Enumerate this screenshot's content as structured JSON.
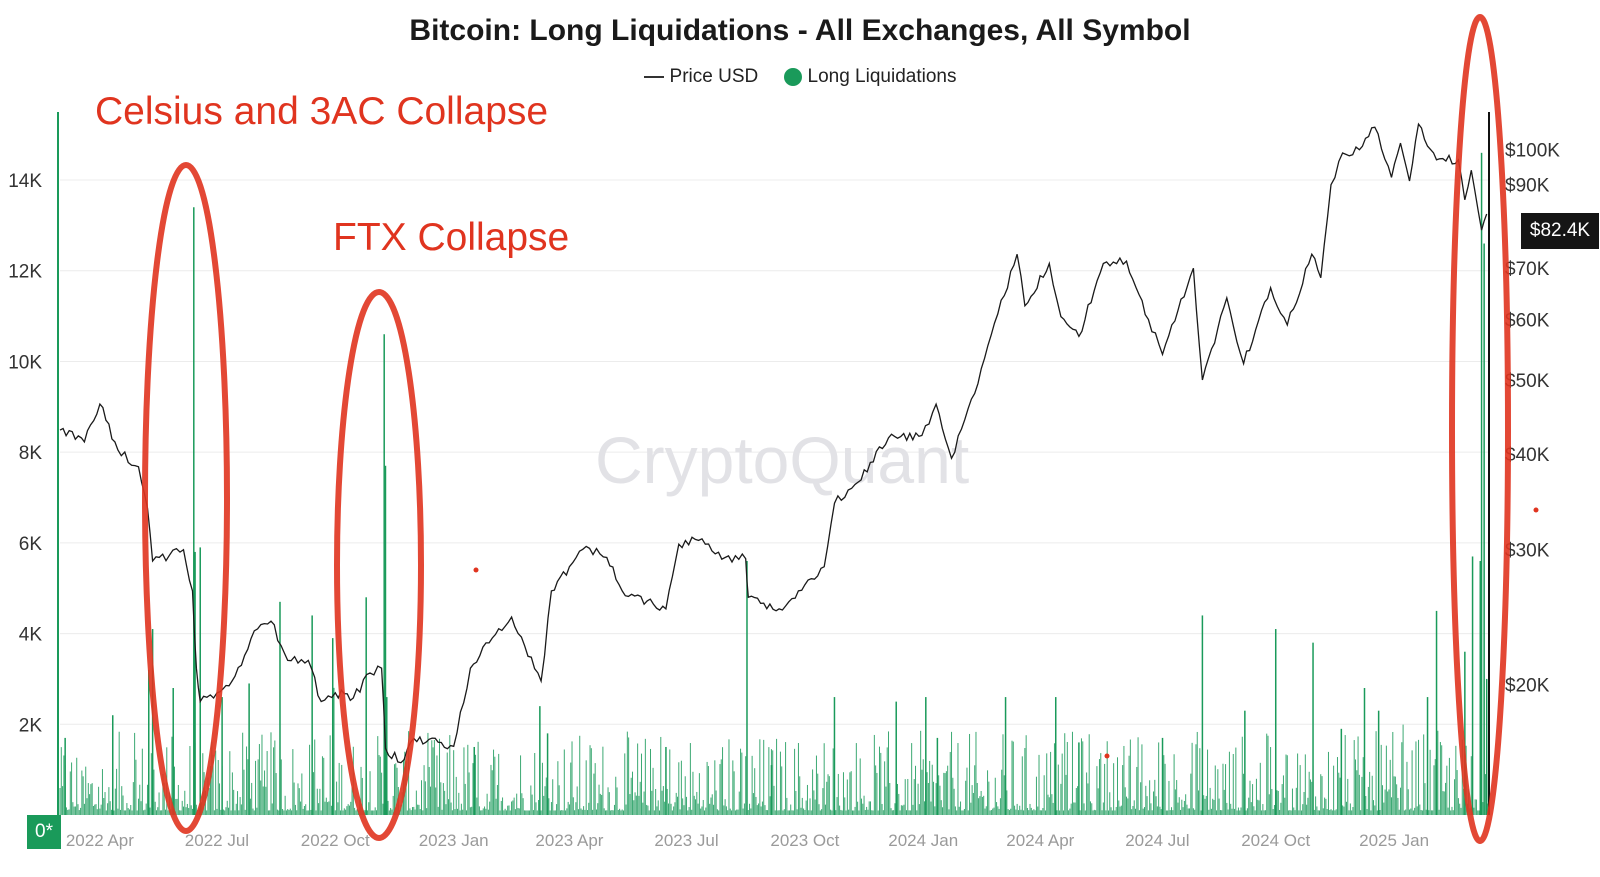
{
  "colors": {
    "liquidations": "#1a9a5a",
    "price_line": "#1a1a1a",
    "annotation": "#e0341f",
    "grid": "#ececec"
  },
  "watermark": "CryptoQuant",
  "annotations": [
    {
      "text": "Celsius and 3AC Collapse"
    },
    {
      "text": "FTX Collapse"
    }
  ],
  "zero_label": "0*",
  "current_price_label": "$82.4K",
  "chart_data": {
    "type": "bar",
    "title": "Bitcoin: Long Liquidations - All Exchanges, All Symbol",
    "legend": [
      {
        "name": "Price USD",
        "marker": "line"
      },
      {
        "name": "Long Liquidations",
        "marker": "dot"
      }
    ],
    "legend_position": "top-center",
    "grid": true,
    "x_range": [
      "2022-03-01",
      "2025-03-15"
    ],
    "x_ticks": [
      {
        "date": "2022-04-01",
        "label": "2022 Apr"
      },
      {
        "date": "2022-07-01",
        "label": "2022 Jul"
      },
      {
        "date": "2022-10-01",
        "label": "2022 Oct"
      },
      {
        "date": "2023-01-01",
        "label": "2023 Jan"
      },
      {
        "date": "2023-04-01",
        "label": "2023 Apr"
      },
      {
        "date": "2023-07-01",
        "label": "2023 Jul"
      },
      {
        "date": "2023-10-01",
        "label": "2023 Oct"
      },
      {
        "date": "2024-01-01",
        "label": "2024 Jan"
      },
      {
        "date": "2024-04-01",
        "label": "2024 Apr"
      },
      {
        "date": "2024-07-01",
        "label": "2024 Jul"
      },
      {
        "date": "2024-10-01",
        "label": "2024 Oct"
      },
      {
        "date": "2025-01-01",
        "label": "2025 Jan"
      }
    ],
    "y_left": {
      "ylim": [
        0,
        15500
      ],
      "ticks": [
        {
          "value": 2000,
          "label": "2K"
        },
        {
          "value": 4000,
          "label": "4K"
        },
        {
          "value": 6000,
          "label": "6K"
        },
        {
          "value": 8000,
          "label": "8K"
        },
        {
          "value": 10000,
          "label": "10K"
        },
        {
          "value": 12000,
          "label": "12K"
        },
        {
          "value": 14000,
          "label": "14K"
        }
      ]
    },
    "y_right": {
      "scale": "log",
      "ylim": [
        13500,
        112000
      ],
      "ticks": [
        {
          "value": 20000,
          "label": "$20K"
        },
        {
          "value": 30000,
          "label": "$30K"
        },
        {
          "value": 40000,
          "label": "$40K"
        },
        {
          "value": 50000,
          "label": "$50K"
        },
        {
          "value": 60000,
          "label": "$60K"
        },
        {
          "value": 70000,
          "label": "$70K"
        },
        {
          "value": 90000,
          "label": "$90K"
        },
        {
          "value": 100000,
          "label": "$100K"
        }
      ]
    },
    "series": [
      {
        "name": "Price USD",
        "type": "line",
        "points": [
          [
            "2022-03-01",
            43000
          ],
          [
            "2022-03-20",
            41500
          ],
          [
            "2022-04-01",
            46500
          ],
          [
            "2022-04-15",
            40500
          ],
          [
            "2022-05-01",
            38500
          ],
          [
            "2022-05-08",
            34000
          ],
          [
            "2022-05-12",
            29000
          ],
          [
            "2022-05-25",
            29500
          ],
          [
            "2022-06-05",
            30000
          ],
          [
            "2022-06-12",
            26500
          ],
          [
            "2022-06-15",
            21000
          ],
          [
            "2022-06-18",
            19000
          ],
          [
            "2022-07-01",
            19500
          ],
          [
            "2022-07-15",
            20500
          ],
          [
            "2022-07-30",
            23500
          ],
          [
            "2022-08-12",
            24200
          ],
          [
            "2022-08-25",
            21500
          ],
          [
            "2022-09-10",
            21500
          ],
          [
            "2022-09-20",
            19000
          ],
          [
            "2022-10-01",
            19500
          ],
          [
            "2022-10-15",
            19200
          ],
          [
            "2022-10-28",
            20700
          ],
          [
            "2022-11-06",
            21000
          ],
          [
            "2022-11-09",
            16500
          ],
          [
            "2022-11-21",
            15800
          ],
          [
            "2022-12-01",
            17000
          ],
          [
            "2022-12-20",
            16800
          ],
          [
            "2023-01-01",
            16600
          ],
          [
            "2023-01-14",
            21000
          ],
          [
            "2023-01-31",
            23000
          ],
          [
            "2023-02-15",
            24500
          ],
          [
            "2023-03-10",
            20200
          ],
          [
            "2023-03-18",
            26500
          ],
          [
            "2023-04-01",
            28500
          ],
          [
            "2023-04-14",
            30300
          ],
          [
            "2023-04-30",
            29300
          ],
          [
            "2023-05-12",
            26500
          ],
          [
            "2023-06-15",
            25100
          ],
          [
            "2023-06-25",
            30500
          ],
          [
            "2023-07-13",
            31000
          ],
          [
            "2023-07-31",
            29300
          ],
          [
            "2023-08-16",
            29200
          ],
          [
            "2023-08-18",
            26000
          ],
          [
            "2023-09-11",
            25100
          ],
          [
            "2023-10-01",
            27000
          ],
          [
            "2023-10-16",
            28500
          ],
          [
            "2023-10-24",
            34500
          ],
          [
            "2023-11-09",
            36500
          ],
          [
            "2023-12-05",
            42000
          ],
          [
            "2023-12-31",
            42300
          ],
          [
            "2024-01-11",
            46500
          ],
          [
            "2024-01-23",
            39500
          ],
          [
            "2024-02-10",
            48000
          ],
          [
            "2024-02-28",
            61000
          ],
          [
            "2024-03-14",
            73000
          ],
          [
            "2024-03-20",
            62500
          ],
          [
            "2024-04-08",
            71000
          ],
          [
            "2024-04-17",
            60500
          ],
          [
            "2024-05-01",
            57000
          ],
          [
            "2024-05-20",
            71000
          ],
          [
            "2024-06-07",
            71500
          ],
          [
            "2024-06-24",
            60000
          ],
          [
            "2024-07-05",
            54000
          ],
          [
            "2024-07-29",
            70000
          ],
          [
            "2024-08-05",
            50000
          ],
          [
            "2024-08-24",
            64000
          ],
          [
            "2024-09-06",
            52500
          ],
          [
            "2024-09-27",
            66000
          ],
          [
            "2024-10-10",
            59000
          ],
          [
            "2024-10-29",
            73000
          ],
          [
            "2024-11-05",
            68000
          ],
          [
            "2024-11-13",
            90000
          ],
          [
            "2024-11-22",
            99000
          ],
          [
            "2024-12-05",
            100000
          ],
          [
            "2024-12-17",
            107000
          ],
          [
            "2024-12-30",
            92000
          ],
          [
            "2025-01-06",
            102000
          ],
          [
            "2025-01-13",
            91000
          ],
          [
            "2025-01-20",
            108000
          ],
          [
            "2025-02-03",
            97000
          ],
          [
            "2025-02-20",
            97000
          ],
          [
            "2025-02-25",
            86000
          ],
          [
            "2025-03-02",
            94000
          ],
          [
            "2025-03-10",
            78500
          ],
          [
            "2025-03-14",
            82400
          ]
        ]
      },
      {
        "name": "Long Liquidations",
        "type": "bar",
        "spikes": [
          [
            "2022-03-05",
            1700
          ],
          [
            "2022-04-11",
            2200
          ],
          [
            "2022-05-09",
            3200
          ],
          [
            "2022-05-12",
            4100
          ],
          [
            "2022-05-28",
            2800
          ],
          [
            "2022-06-13",
            13400
          ],
          [
            "2022-06-14",
            5800
          ],
          [
            "2022-06-18",
            5900
          ],
          [
            "2022-07-05",
            2600
          ],
          [
            "2022-07-26",
            2900
          ],
          [
            "2022-08-19",
            4700
          ],
          [
            "2022-09-13",
            4400
          ],
          [
            "2022-09-29",
            3900
          ],
          [
            "2022-10-25",
            4800
          ],
          [
            "2022-11-08",
            10600
          ],
          [
            "2022-11-09",
            7700
          ],
          [
            "2022-11-10",
            2600
          ],
          [
            "2023-01-17",
            1500
          ],
          [
            "2023-03-09",
            2400
          ],
          [
            "2023-03-15",
            1800
          ],
          [
            "2023-06-15",
            1500
          ],
          [
            "2023-08-17",
            5600
          ],
          [
            "2023-09-05",
            1100
          ],
          [
            "2023-10-24",
            2600
          ],
          [
            "2023-12-11",
            2500
          ],
          [
            "2024-01-03",
            2600
          ],
          [
            "2024-01-12",
            1700
          ],
          [
            "2024-03-05",
            2600
          ],
          [
            "2024-04-13",
            2600
          ],
          [
            "2024-05-01",
            1600
          ],
          [
            "2024-07-05",
            1700
          ],
          [
            "2024-08-05",
            4400
          ],
          [
            "2024-09-07",
            2300
          ],
          [
            "2024-10-01",
            4100
          ],
          [
            "2024-10-30",
            3800
          ],
          [
            "2024-11-21",
            1900
          ],
          [
            "2024-12-09",
            2800
          ],
          [
            "2024-12-20",
            2300
          ],
          [
            "2025-01-27",
            2600
          ],
          [
            "2025-02-03",
            4500
          ],
          [
            "2025-02-25",
            3600
          ],
          [
            "2025-03-03",
            5700
          ],
          [
            "2025-03-09",
            5600
          ],
          [
            "2025-03-10",
            14600
          ],
          [
            "2025-03-12",
            12600
          ],
          [
            "2025-03-14",
            3000
          ]
        ],
        "baseline_typical": [
          100,
          900
        ]
      }
    ]
  }
}
